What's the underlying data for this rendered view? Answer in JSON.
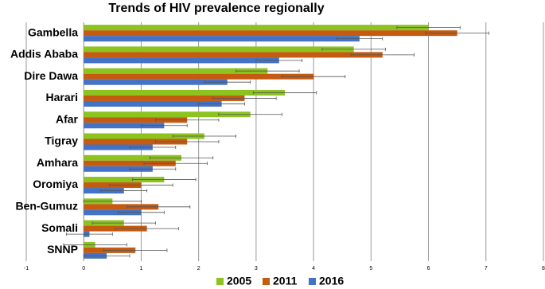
{
  "chart_data": {
    "type": "hbar",
    "title": "Trends of HIV prevalence regionally",
    "categories": [
      "Gambella",
      "Addis Ababa",
      "Dire Dawa",
      "Harari",
      "Afar",
      "Tigray",
      "Amhara",
      "Oromiya",
      "Ben-Gumuz",
      "Somali",
      "SNNP"
    ],
    "series": [
      {
        "name": "2005",
        "color": "#8cc31f",
        "values": [
          6.0,
          4.7,
          3.2,
          3.5,
          2.9,
          2.1,
          1.7,
          1.4,
          0.5,
          0.7,
          0.2
        ],
        "errors": [
          0.55,
          0.55,
          0.55,
          0.55,
          0.55,
          0.55,
          0.55,
          0.55,
          0.5,
          0.55,
          0.55
        ]
      },
      {
        "name": "2011",
        "color": "#c55a11",
        "values": [
          6.5,
          5.2,
          4.0,
          2.8,
          1.8,
          1.8,
          1.6,
          1.0,
          1.3,
          1.1,
          0.9
        ],
        "errors": [
          0.55,
          0.55,
          0.55,
          0.55,
          0.55,
          0.55,
          0.55,
          0.55,
          0.55,
          0.55,
          0.55
        ]
      },
      {
        "name": "2016",
        "color": "#4472c4",
        "values": [
          4.8,
          3.4,
          2.5,
          2.4,
          1.4,
          1.2,
          1.2,
          0.7,
          1.0,
          0.1,
          0.4
        ],
        "errors": [
          0.4,
          0.4,
          0.4,
          0.4,
          0.4,
          0.4,
          0.4,
          0.4,
          0.4,
          0.4,
          0.4
        ]
      }
    ],
    "xlim": [
      -1,
      8
    ],
    "xticks": [
      -1,
      0,
      1,
      2,
      3,
      4,
      5,
      6,
      7,
      8
    ],
    "grid": true,
    "legend": "bottom"
  }
}
